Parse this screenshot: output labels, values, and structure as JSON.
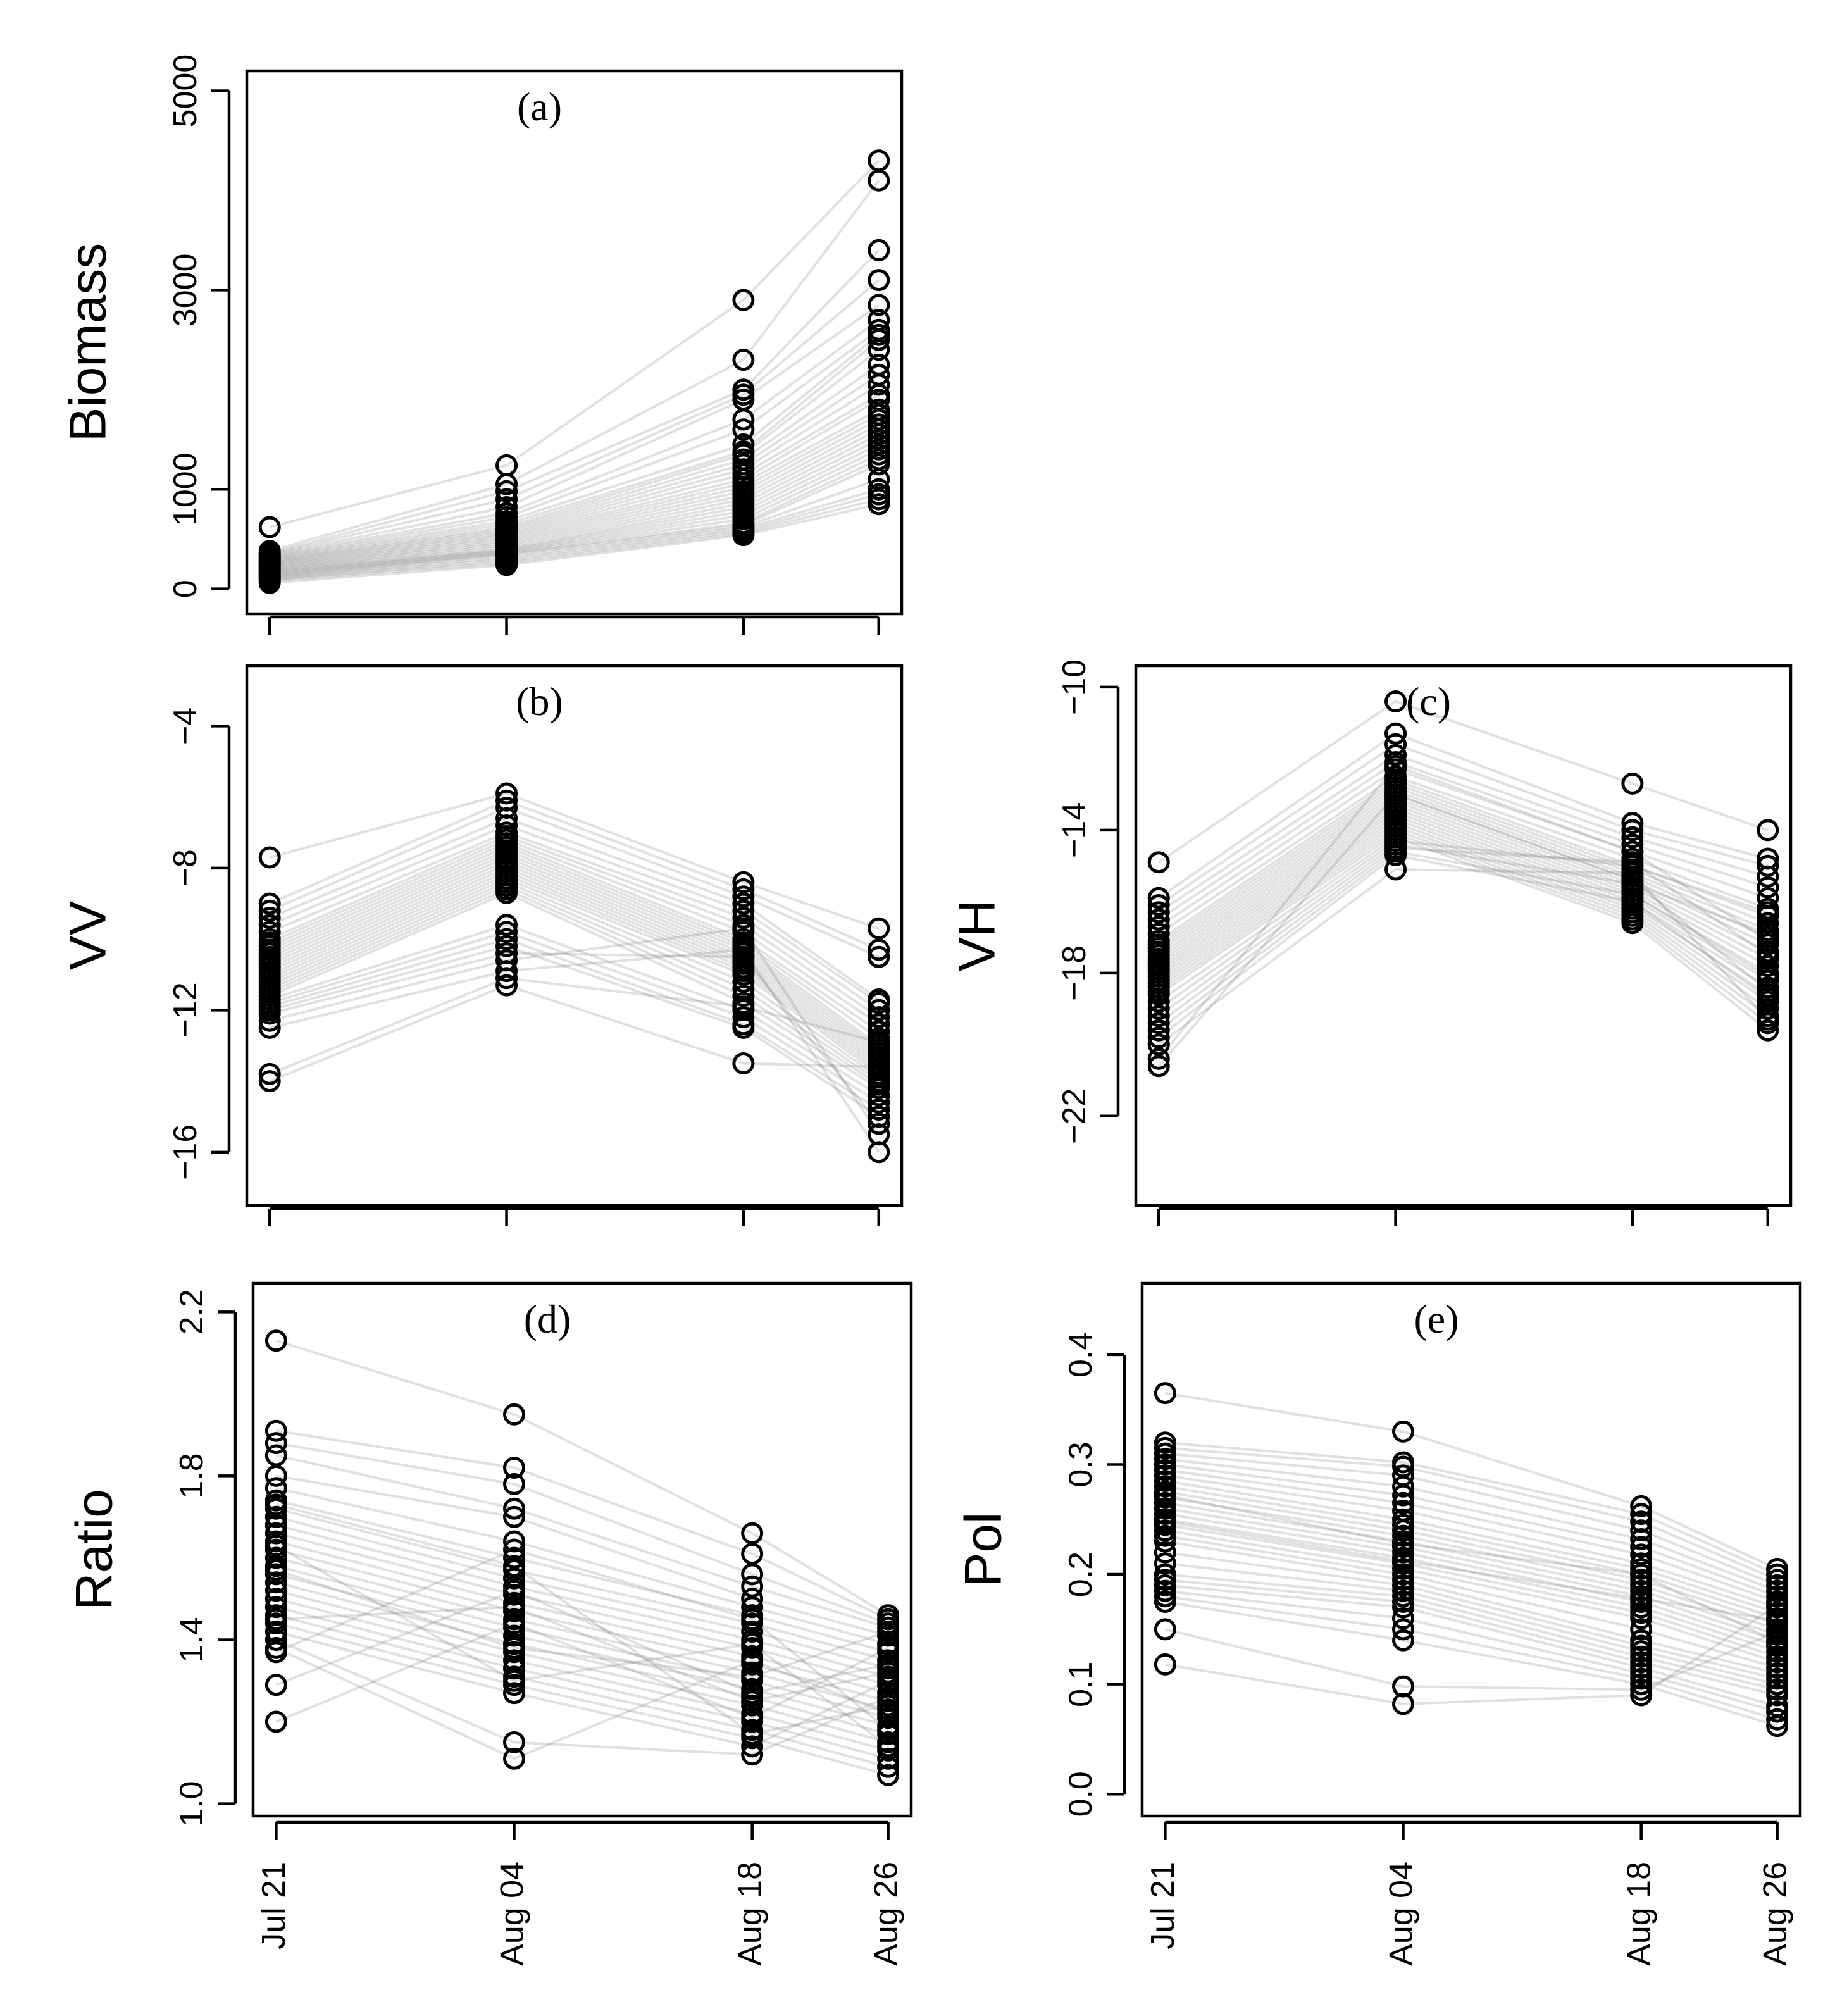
{
  "figure": {
    "date_labels": [
      "Jul 21",
      "Aug 04",
      "Aug 18",
      "Aug 26"
    ],
    "day_offsets": [
      0,
      14,
      28,
      36
    ],
    "point_color": "#000000",
    "line_color": "#777777"
  },
  "chart_data": [
    {
      "id": "a",
      "type": "scatter",
      "panel_label": "(a)",
      "ylabel": "Biomass",
      "ylim": [
        -250,
        5200
      ],
      "yticks": [
        0,
        1000,
        3000,
        5000
      ],
      "ytick_labels": [
        "0",
        "1000",
        "3000",
        "5000"
      ],
      "x_axis_labels_shown": false,
      "series": [
        {
          "name": "Jul 21",
          "values": [
            620,
            380,
            360,
            350,
            340,
            330,
            320,
            310,
            300,
            290,
            280,
            270,
            260,
            250,
            240,
            230,
            220,
            210,
            200,
            190,
            180,
            170,
            160,
            150,
            140,
            130,
            120,
            110,
            100,
            90,
            80,
            60
          ]
        },
        {
          "name": "Aug 04",
          "values": [
            1240,
            1050,
            980,
            900,
            820,
            760,
            720,
            680,
            650,
            620,
            600,
            580,
            560,
            540,
            520,
            500,
            480,
            460,
            440,
            420,
            400,
            390,
            380,
            370,
            360,
            350,
            340,
            320,
            300,
            280,
            260,
            240
          ]
        },
        {
          "name": "Aug 18",
          "values": [
            2900,
            2300,
            2000,
            1950,
            1900,
            1700,
            1600,
            1450,
            1380,
            1350,
            1300,
            1250,
            1200,
            1150,
            1100,
            1060,
            1020,
            980,
            940,
            900,
            860,
            820,
            780,
            740,
            700,
            660,
            640,
            620,
            600,
            580,
            560,
            540
          ]
        },
        {
          "name": "Aug 26",
          "values": [
            4300,
            4100,
            3400,
            3100,
            2850,
            2700,
            2600,
            2550,
            2500,
            2400,
            2250,
            2150,
            2050,
            1950,
            1900,
            1800,
            1750,
            1700,
            1650,
            1600,
            1550,
            1500,
            1450,
            1400,
            1350,
            1300,
            1250,
            1100,
            1000,
            950,
            900,
            850
          ]
        }
      ]
    },
    {
      "id": "b",
      "type": "scatter",
      "panel_label": "(b)",
      "ylabel": "VV",
      "ylim": [
        -17.5,
        -2.3
      ],
      "yticks": [
        -16,
        -12,
        -8,
        -4
      ],
      "ytick_labels": [
        "−16",
        "−12",
        "−8",
        "−4"
      ],
      "x_axis_labels_shown": false,
      "series": [
        {
          "name": "Jul 21",
          "values": [
            -7.7,
            -9.0,
            -9.2,
            -9.4,
            -9.6,
            -9.8,
            -10.0,
            -10.1,
            -10.2,
            -10.3,
            -10.4,
            -10.5,
            -10.6,
            -10.7,
            -10.8,
            -10.9,
            -11.0,
            -11.1,
            -11.2,
            -11.3,
            -11.4,
            -11.5,
            -11.6,
            -11.7,
            -11.8,
            -11.9,
            -12.0,
            -12.1,
            -12.3,
            -12.5,
            -13.8,
            -14.0
          ]
        },
        {
          "name": "Aug 04",
          "values": [
            -5.9,
            -6.1,
            -6.3,
            -6.6,
            -6.8,
            -7.0,
            -7.1,
            -7.2,
            -7.3,
            -7.4,
            -7.5,
            -7.6,
            -7.7,
            -7.8,
            -7.9,
            -8.0,
            -8.1,
            -8.2,
            -8.3,
            -8.4,
            -8.5,
            -8.6,
            -8.7,
            -9.6,
            -9.8,
            -10.0,
            -10.2,
            -10.4,
            -10.6,
            -10.9,
            -11.1,
            -11.3
          ]
        },
        {
          "name": "Aug 18",
          "values": [
            -8.4,
            -8.6,
            -8.8,
            -9.0,
            -9.2,
            -9.4,
            -9.6,
            -9.8,
            -10.0,
            -10.1,
            -10.2,
            -10.3,
            -10.4,
            -10.5,
            -10.6,
            -10.7,
            -10.8,
            -10.9,
            -11.0,
            -11.2,
            -11.4,
            -11.6,
            -11.8,
            -12.0,
            -12.2,
            -12.4,
            -12.5,
            -10.5,
            -9.7,
            -10.3,
            -11.9,
            -13.5
          ]
        },
        {
          "name": "Aug 26",
          "values": [
            -9.7,
            -10.3,
            -10.5,
            -11.7,
            -11.8,
            -12.0,
            -12.2,
            -12.4,
            -12.6,
            -12.8,
            -13.0,
            -13.1,
            -13.2,
            -13.3,
            -13.4,
            -13.5,
            -13.6,
            -13.7,
            -13.8,
            -13.9,
            -14.0,
            -14.1,
            -14.2,
            -14.4,
            -14.6,
            -14.8,
            -15.0,
            -15.2,
            -15.5,
            -16.0,
            -12.9,
            -13.6
          ]
        }
      ]
    },
    {
      "id": "c",
      "type": "scatter",
      "panel_label": "(c)",
      "ylabel": "VH",
      "ylim": [
        -24.5,
        -9.4
      ],
      "yticks": [
        -22,
        -18,
        -14,
        -10
      ],
      "ytick_labels": [
        "−22",
        "−18",
        "−14",
        "−10"
      ],
      "x_axis_labels_shown": false,
      "series": [
        {
          "name": "Jul 21",
          "values": [
            -14.9,
            -15.9,
            -16.1,
            -16.3,
            -16.5,
            -16.7,
            -16.9,
            -17.1,
            -17.2,
            -17.3,
            -17.4,
            -17.5,
            -17.6,
            -17.7,
            -17.8,
            -17.9,
            -18.0,
            -18.1,
            -18.2,
            -18.3,
            -18.4,
            -18.5,
            -18.6,
            -18.8,
            -19.0,
            -19.2,
            -19.4,
            -19.6,
            -19.8,
            -20.0,
            -20.4,
            -20.6
          ]
        },
        {
          "name": "Aug 04",
          "values": [
            -10.4,
            -11.3,
            -11.6,
            -11.9,
            -12.1,
            -12.3,
            -12.5,
            -12.6,
            -12.7,
            -12.8,
            -12.9,
            -13.0,
            -13.1,
            -13.2,
            -13.3,
            -13.4,
            -13.5,
            -13.6,
            -13.7,
            -13.8,
            -13.9,
            -14.0,
            -14.1,
            -14.2,
            -14.3,
            -14.4,
            -14.5,
            -14.6,
            -14.7,
            -15.1,
            -12.2,
            -13.0
          ]
        },
        {
          "name": "Aug 18",
          "values": [
            -12.7,
            -13.8,
            -14.0,
            -14.2,
            -14.4,
            -14.6,
            -14.8,
            -15.0,
            -15.1,
            -15.2,
            -15.3,
            -15.4,
            -15.5,
            -15.6,
            -15.7,
            -15.8,
            -15.9,
            -16.0,
            -16.1,
            -16.2,
            -16.3,
            -16.4,
            -16.5,
            -16.6,
            -15.0,
            -15.5,
            -14.9,
            -15.8,
            -16.0,
            -15.2,
            -14.6,
            -15.4
          ]
        },
        {
          "name": "Aug 26",
          "values": [
            -14.0,
            -14.8,
            -15.0,
            -15.3,
            -15.6,
            -15.9,
            -16.2,
            -16.4,
            -16.6,
            -16.8,
            -17.0,
            -17.2,
            -17.4,
            -17.6,
            -17.8,
            -18.0,
            -18.2,
            -18.4,
            -18.6,
            -18.8,
            -19.0,
            -19.2,
            -19.4,
            -19.6,
            -16.3,
            -16.9,
            -17.5,
            -18.1,
            -18.7,
            -19.3,
            -17.1,
            -18.5
          ]
        }
      ]
    },
    {
      "id": "d",
      "type": "scatter",
      "panel_label": "(d)",
      "ylabel": "Ratio",
      "ylim": [
        0.97,
        2.27
      ],
      "yticks": [
        1.0,
        1.4,
        1.8,
        2.2
      ],
      "ytick_labels": [
        "1.0",
        "1.4",
        "1.8",
        "2.2"
      ],
      "x_axis_labels_shown": true,
      "series": [
        {
          "name": "Jul 21",
          "values": [
            2.13,
            1.91,
            1.88,
            1.85,
            1.8,
            1.77,
            1.74,
            1.72,
            1.7,
            1.68,
            1.66,
            1.64,
            1.62,
            1.6,
            1.58,
            1.56,
            1.54,
            1.52,
            1.5,
            1.48,
            1.46,
            1.44,
            1.42,
            1.4,
            1.38,
            1.37,
            1.29,
            1.2,
            1.57,
            1.63,
            1.73,
            1.45
          ]
        },
        {
          "name": "Aug 04",
          "values": [
            1.95,
            1.82,
            1.78,
            1.72,
            1.7,
            1.64,
            1.6,
            1.57,
            1.55,
            1.53,
            1.51,
            1.49,
            1.47,
            1.45,
            1.43,
            1.41,
            1.39,
            1.37,
            1.35,
            1.33,
            1.31,
            1.29,
            1.27,
            1.15,
            1.11,
            1.62,
            1.52,
            1.44,
            1.38,
            1.3,
            1.58,
            1.48
          ]
        },
        {
          "name": "Aug 18",
          "values": [
            1.66,
            1.61,
            1.56,
            1.53,
            1.5,
            1.48,
            1.46,
            1.44,
            1.42,
            1.4,
            1.38,
            1.36,
            1.34,
            1.32,
            1.3,
            1.28,
            1.26,
            1.24,
            1.22,
            1.2,
            1.18,
            1.16,
            1.14,
            1.12,
            1.35,
            1.45,
            1.27,
            1.21,
            1.31,
            1.39,
            1.17,
            1.25
          ]
        },
        {
          "name": "Aug 26",
          "values": [
            1.46,
            1.45,
            1.44,
            1.43,
            1.41,
            1.39,
            1.37,
            1.35,
            1.33,
            1.31,
            1.29,
            1.27,
            1.25,
            1.23,
            1.21,
            1.19,
            1.17,
            1.15,
            1.13,
            1.11,
            1.09,
            1.07,
            1.3,
            1.26,
            1.22,
            1.18,
            1.34,
            1.38,
            1.42,
            1.14,
            1.24,
            1.32
          ]
        }
      ]
    },
    {
      "id": "e",
      "type": "scatter",
      "panel_label": "(e)",
      "ylabel": "Pol",
      "ylim": [
        -0.02,
        0.465
      ],
      "yticks": [
        0.0,
        0.1,
        0.2,
        0.3,
        0.4
      ],
      "ytick_labels": [
        "0.0",
        "0.1",
        "0.2",
        "0.3",
        "0.4"
      ],
      "x_axis_labels_shown": true,
      "series": [
        {
          "name": "Jul 21",
          "values": [
            0.365,
            0.32,
            0.315,
            0.31,
            0.305,
            0.3,
            0.295,
            0.29,
            0.285,
            0.28,
            0.275,
            0.27,
            0.265,
            0.26,
            0.255,
            0.25,
            0.245,
            0.24,
            0.235,
            0.23,
            0.22,
            0.21,
            0.2,
            0.195,
            0.19,
            0.185,
            0.18,
            0.175,
            0.15,
            0.118,
            0.272,
            0.248
          ]
        },
        {
          "name": "Aug 04",
          "values": [
            0.33,
            0.302,
            0.298,
            0.29,
            0.28,
            0.272,
            0.265,
            0.258,
            0.25,
            0.245,
            0.24,
            0.235,
            0.23,
            0.225,
            0.22,
            0.215,
            0.21,
            0.205,
            0.2,
            0.195,
            0.19,
            0.185,
            0.18,
            0.175,
            0.17,
            0.16,
            0.15,
            0.14,
            0.098,
            0.082,
            0.228,
            0.212
          ]
        },
        {
          "name": "Aug 18",
          "values": [
            0.262,
            0.255,
            0.248,
            0.24,
            0.232,
            0.225,
            0.218,
            0.21,
            0.205,
            0.2,
            0.195,
            0.19,
            0.185,
            0.18,
            0.175,
            0.17,
            0.165,
            0.16,
            0.15,
            0.14,
            0.135,
            0.13,
            0.125,
            0.12,
            0.115,
            0.11,
            0.105,
            0.1,
            0.095,
            0.09,
            0.2,
            0.178
          ]
        },
        {
          "name": "Aug 26",
          "values": [
            0.205,
            0.2,
            0.195,
            0.19,
            0.185,
            0.18,
            0.175,
            0.17,
            0.165,
            0.16,
            0.155,
            0.15,
            0.145,
            0.14,
            0.135,
            0.13,
            0.125,
            0.12,
            0.115,
            0.11,
            0.105,
            0.1,
            0.095,
            0.09,
            0.08,
            0.075,
            0.068,
            0.062,
            0.148,
            0.172,
            0.138,
            0.158
          ]
        }
      ]
    }
  ]
}
